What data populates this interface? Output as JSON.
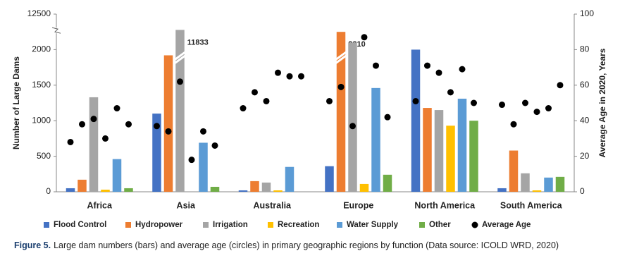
{
  "chart_data": {
    "type": "bar",
    "categories": [
      "Africa",
      "Asia",
      "Australia",
      "Europe",
      "North America",
      "South America"
    ],
    "series": [
      {
        "name": "Flood Control",
        "color": "#4472c4",
        "values": [
          50,
          1100,
          20,
          360,
          2000,
          50
        ]
      },
      {
        "name": "Hydropower",
        "color": "#ed7d31",
        "values": [
          170,
          1920,
          150,
          2310,
          1180,
          580
        ]
      },
      {
        "name": "Irrigation",
        "color": "#a5a5a5",
        "values": [
          1330,
          11833,
          130,
          2100,
          1150,
          260
        ]
      },
      {
        "name": "Recreation",
        "color": "#ffc000",
        "values": [
          30,
          0,
          20,
          110,
          930,
          20
        ]
      },
      {
        "name": "Water Supply",
        "color": "#5b9bd5",
        "values": [
          460,
          690,
          350,
          1460,
          1310,
          200
        ]
      },
      {
        "name": "Other",
        "color": "#70ad47",
        "values": [
          50,
          70,
          0,
          240,
          1000,
          210
        ]
      },
      {
        "name": "Average Age",
        "color": "#000000",
        "type": "scatter",
        "axis": "y2",
        "values": [
          [
            28,
            38,
            41,
            30,
            47,
            38
          ],
          [
            37,
            34,
            62,
            18,
            34,
            26
          ],
          [
            47,
            56,
            51,
            67,
            65,
            65
          ],
          [
            51,
            59,
            37,
            87,
            71,
            42
          ],
          [
            51,
            71,
            67,
            56,
            69,
            50
          ],
          [
            49,
            38,
            50,
            45,
            47,
            60
          ]
        ]
      }
    ],
    "ylabel": "Number of Large Dams",
    "y2label": "Average Age in 2020, Years",
    "ylim": [
      0,
      12500
    ],
    "ybreak": [
      2250,
      11750
    ],
    "yticks": [
      0,
      500,
      1000,
      1500,
      2000,
      12500
    ],
    "y2lim": [
      0,
      100
    ],
    "y2ticks": [
      0,
      20,
      40,
      60,
      80,
      100
    ],
    "caption_label": "Figure 5.",
    "caption": "Large dam numbers (bars) and average age (circles) in primary geographic regions by function (Data source: ICOLD WRD, 2020)"
  }
}
